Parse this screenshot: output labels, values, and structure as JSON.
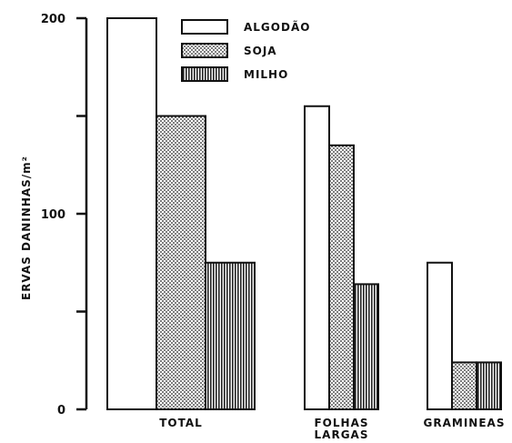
{
  "chart_data": {
    "type": "bar",
    "title": "",
    "ylabel": "ERVAS DANINHAS/m²",
    "xlabel": "",
    "ylim": [
      0,
      200
    ],
    "yticks": [
      "0",
      "100",
      "200"
    ],
    "categories": [
      [
        "TOTAL"
      ],
      [
        "FOLHAS",
        "LARGAS"
      ],
      [
        "GRAMINEAS"
      ]
    ],
    "series": [
      {
        "name": "ALGODÃO",
        "values": [
          200,
          155,
          75
        ],
        "pattern": "white"
      },
      {
        "name": "SOJA",
        "values": [
          150,
          135,
          24
        ],
        "pattern": "dots"
      },
      {
        "name": "MILHO",
        "values": [
          75,
          64,
          24
        ],
        "pattern": "vlines"
      }
    ],
    "legend_position": "top-center",
    "grid": false
  }
}
